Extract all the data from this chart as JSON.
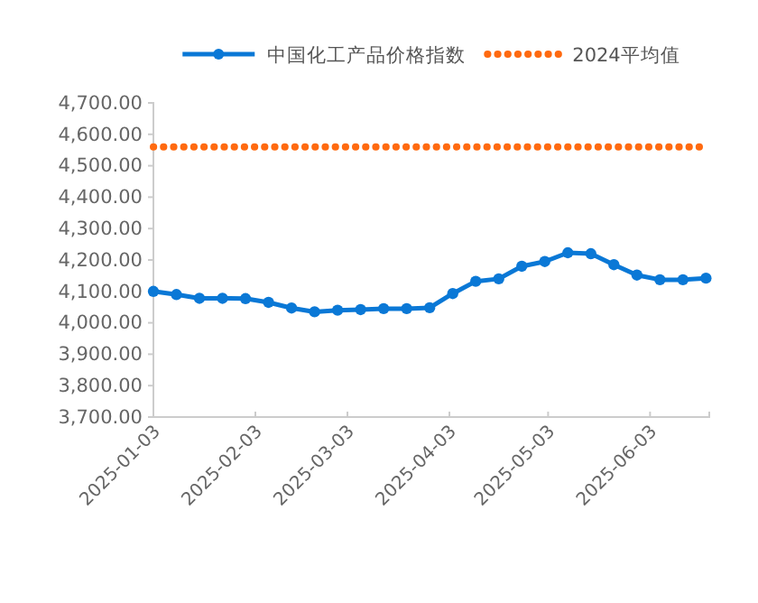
{
  "chart_data": {
    "type": "line",
    "x": [
      "2025-01-03",
      "2025-01-10",
      "2025-01-17",
      "2025-01-24",
      "2025-01-31",
      "2025-02-07",
      "2025-02-14",
      "2025-02-21",
      "2025-02-28",
      "2025-03-07",
      "2025-03-14",
      "2025-03-21",
      "2025-03-28",
      "2025-04-04",
      "2025-04-11",
      "2025-04-18",
      "2025-04-25",
      "2025-05-02",
      "2025-05-09",
      "2025-05-16",
      "2025-05-23",
      "2025-05-30",
      "2025-06-06",
      "2025-06-13",
      "2025-06-20"
    ],
    "series": [
      {
        "name": "中国化工产品价格指数",
        "color": "#0a78d6",
        "marker": "circle",
        "line_style": "solid",
        "values": [
          4100,
          4090,
          4078,
          4078,
          4077,
          4065,
          4047,
          4035,
          4040,
          4042,
          4045,
          4045,
          4048,
          4093,
          4132,
          4140,
          4180,
          4195,
          4223,
          4220,
          4185,
          4152,
          4137,
          4137,
          4142
        ]
      },
      {
        "name": "2024平均值",
        "color": "#ff6a10",
        "marker": "none",
        "line_style": "dotted",
        "values": [
          4560,
          4560,
          4560,
          4560,
          4560,
          4560,
          4560,
          4560,
          4560,
          4560,
          4560,
          4560,
          4560,
          4560,
          4560,
          4560,
          4560,
          4560,
          4560,
          4560,
          4560,
          4560,
          4560,
          4560,
          4560
        ]
      }
    ],
    "xlim": [
      "2025-01-03",
      "2025-06-21"
    ],
    "xticks": [
      {
        "value": "2025-01-03",
        "label": "2025-01-03"
      },
      {
        "value": "2025-02-03",
        "label": "2025-02-03"
      },
      {
        "value": "2025-03-03",
        "label": "2025-03-03"
      },
      {
        "value": "2025-04-03",
        "label": "2025-04-03"
      },
      {
        "value": "2025-05-03",
        "label": "2025-05-03"
      },
      {
        "value": "2025-06-03",
        "label": "2025-06-03"
      }
    ],
    "ylim": [
      3700,
      4700
    ],
    "yticks": [
      {
        "value": 3700,
        "label": "3,700.00"
      },
      {
        "value": 3800,
        "label": "3,800.00"
      },
      {
        "value": 3900,
        "label": "3,900.00"
      },
      {
        "value": 4000,
        "label": "4,000.00"
      },
      {
        "value": 4100,
        "label": "4,100.00"
      },
      {
        "value": 4200,
        "label": "4,200.00"
      },
      {
        "value": 4300,
        "label": "4,300.00"
      },
      {
        "value": 4400,
        "label": "4,400.00"
      },
      {
        "value": 4500,
        "label": "4,500.00"
      },
      {
        "value": 4600,
        "label": "4,600.00"
      },
      {
        "value": 4700,
        "label": "4,700.00"
      }
    ],
    "grid": false,
    "legend": "top"
  }
}
